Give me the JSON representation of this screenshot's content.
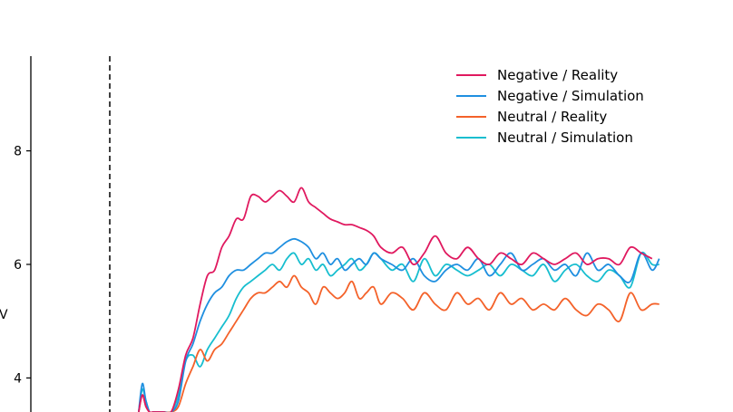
{
  "chart_data": {
    "type": "line",
    "ylabel": "V",
    "ylim": [
      3.4,
      9.7
    ],
    "xlim": [
      -0.22,
      1.55
    ],
    "y_ticks": [
      4,
      6,
      8
    ],
    "stimulus_onset_x": 0.0,
    "grid": false,
    "legend_position": "top-right",
    "series": [
      {
        "name": "Negative / Reality",
        "color": "#e0195f",
        "x": [
          0.08,
          0.09,
          0.1,
          0.11,
          0.12,
          0.13,
          0.15,
          0.17,
          0.19,
          0.21,
          0.23,
          0.25,
          0.27,
          0.29,
          0.31,
          0.33,
          0.35,
          0.37,
          0.39,
          0.41,
          0.43,
          0.45,
          0.47,
          0.49,
          0.51,
          0.53,
          0.55,
          0.57,
          0.59,
          0.61,
          0.63,
          0.65,
          0.67,
          0.69,
          0.71,
          0.73,
          0.75,
          0.78,
          0.81,
          0.84,
          0.87,
          0.9,
          0.93,
          0.96,
          0.99,
          1.02,
          1.05,
          1.08,
          1.11,
          1.14,
          1.17,
          1.2,
          1.23,
          1.26,
          1.29,
          1.32,
          1.35,
          1.38,
          1.41,
          1.44,
          1.47,
          1.5
        ],
        "values": [
          3.4,
          3.7,
          3.5,
          3.4,
          3.4,
          3.4,
          3.4,
          3.4,
          3.8,
          4.4,
          4.7,
          5.3,
          5.8,
          5.9,
          6.3,
          6.5,
          6.8,
          6.8,
          7.2,
          7.2,
          7.1,
          7.2,
          7.3,
          7.2,
          7.1,
          7.35,
          7.1,
          7.0,
          6.9,
          6.8,
          6.75,
          6.7,
          6.7,
          6.65,
          6.6,
          6.5,
          6.3,
          6.2,
          6.3,
          6.0,
          6.2,
          6.5,
          6.2,
          6.1,
          6.3,
          6.1,
          6.0,
          6.2,
          6.1,
          6.0,
          6.2,
          6.1,
          6.0,
          6.1,
          6.2,
          6.0,
          6.1,
          6.1,
          6.0,
          6.3,
          6.2,
          6.1
        ]
      },
      {
        "name": "Negative / Simulation",
        "color": "#1f8fe0",
        "x": [
          0.08,
          0.09,
          0.1,
          0.11,
          0.12,
          0.13,
          0.15,
          0.17,
          0.19,
          0.21,
          0.23,
          0.25,
          0.27,
          0.29,
          0.31,
          0.33,
          0.35,
          0.37,
          0.39,
          0.41,
          0.43,
          0.45,
          0.47,
          0.49,
          0.51,
          0.53,
          0.55,
          0.57,
          0.59,
          0.61,
          0.63,
          0.65,
          0.67,
          0.69,
          0.71,
          0.73,
          0.75,
          0.78,
          0.81,
          0.84,
          0.87,
          0.9,
          0.93,
          0.96,
          0.99,
          1.02,
          1.05,
          1.08,
          1.11,
          1.14,
          1.17,
          1.2,
          1.23,
          1.26,
          1.29,
          1.32,
          1.35,
          1.38,
          1.41,
          1.44,
          1.47,
          1.5,
          1.52
        ],
        "values": [
          3.4,
          3.9,
          3.6,
          3.4,
          3.4,
          3.4,
          3.4,
          3.4,
          3.6,
          4.3,
          4.6,
          5.0,
          5.3,
          5.5,
          5.6,
          5.8,
          5.9,
          5.9,
          6.0,
          6.1,
          6.2,
          6.2,
          6.3,
          6.4,
          6.45,
          6.4,
          6.3,
          6.1,
          6.2,
          6.0,
          6.1,
          5.9,
          6.0,
          6.1,
          6.0,
          6.2,
          6.1,
          6.0,
          5.9,
          6.1,
          5.8,
          5.7,
          5.9,
          6.0,
          5.9,
          6.1,
          5.8,
          6.0,
          6.2,
          5.9,
          6.0,
          6.1,
          5.9,
          6.0,
          5.8,
          6.2,
          5.9,
          6.0,
          5.8,
          5.7,
          6.2,
          5.9,
          6.1
        ]
      },
      {
        "name": "Neutral / Reality",
        "color": "#f4622a",
        "x": [
          0.08,
          0.09,
          0.1,
          0.11,
          0.12,
          0.13,
          0.15,
          0.17,
          0.19,
          0.21,
          0.23,
          0.25,
          0.27,
          0.29,
          0.31,
          0.33,
          0.35,
          0.37,
          0.39,
          0.41,
          0.43,
          0.45,
          0.47,
          0.49,
          0.51,
          0.53,
          0.55,
          0.57,
          0.59,
          0.61,
          0.63,
          0.65,
          0.67,
          0.69,
          0.71,
          0.73,
          0.75,
          0.78,
          0.81,
          0.84,
          0.87,
          0.9,
          0.93,
          0.96,
          0.99,
          1.02,
          1.05,
          1.08,
          1.11,
          1.14,
          1.17,
          1.2,
          1.23,
          1.26,
          1.29,
          1.32,
          1.35,
          1.38,
          1.41,
          1.44,
          1.47,
          1.5,
          1.52
        ],
        "values": [
          3.4,
          3.7,
          3.5,
          3.4,
          3.4,
          3.4,
          3.4,
          3.4,
          3.5,
          3.9,
          4.2,
          4.5,
          4.3,
          4.5,
          4.6,
          4.8,
          5.0,
          5.2,
          5.4,
          5.5,
          5.5,
          5.6,
          5.7,
          5.6,
          5.8,
          5.6,
          5.5,
          5.3,
          5.6,
          5.5,
          5.4,
          5.5,
          5.7,
          5.4,
          5.5,
          5.6,
          5.3,
          5.5,
          5.4,
          5.2,
          5.5,
          5.3,
          5.2,
          5.5,
          5.3,
          5.4,
          5.2,
          5.5,
          5.3,
          5.4,
          5.2,
          5.3,
          5.2,
          5.4,
          5.2,
          5.1,
          5.3,
          5.2,
          5.0,
          5.5,
          5.2,
          5.3,
          5.3
        ]
      },
      {
        "name": "Neutral / Simulation",
        "color": "#17becf",
        "x": [
          0.08,
          0.09,
          0.1,
          0.11,
          0.12,
          0.13,
          0.15,
          0.17,
          0.19,
          0.21,
          0.23,
          0.25,
          0.27,
          0.29,
          0.31,
          0.33,
          0.35,
          0.37,
          0.39,
          0.41,
          0.43,
          0.45,
          0.47,
          0.49,
          0.51,
          0.53,
          0.55,
          0.57,
          0.59,
          0.61,
          0.63,
          0.65,
          0.67,
          0.69,
          0.71,
          0.73,
          0.75,
          0.78,
          0.81,
          0.84,
          0.87,
          0.9,
          0.93,
          0.96,
          0.99,
          1.02,
          1.05,
          1.08,
          1.11,
          1.14,
          1.17,
          1.2,
          1.23,
          1.26,
          1.29,
          1.32,
          1.35,
          1.38,
          1.41,
          1.44,
          1.47,
          1.5,
          1.52
        ],
        "values": [
          3.4,
          3.8,
          3.6,
          3.4,
          3.4,
          3.4,
          3.4,
          3.4,
          3.7,
          4.3,
          4.4,
          4.2,
          4.5,
          4.7,
          4.9,
          5.1,
          5.4,
          5.6,
          5.7,
          5.8,
          5.9,
          6.0,
          5.9,
          6.1,
          6.2,
          6.0,
          6.1,
          5.9,
          6.0,
          5.8,
          5.9,
          6.0,
          6.1,
          5.9,
          6.0,
          6.2,
          6.1,
          5.9,
          6.0,
          5.7,
          6.1,
          5.8,
          6.0,
          5.9,
          5.8,
          5.9,
          6.0,
          5.8,
          6.0,
          5.9,
          5.8,
          6.0,
          5.7,
          5.9,
          6.0,
          5.8,
          5.7,
          5.9,
          5.8,
          5.6,
          6.2,
          6.0,
          6.0
        ]
      }
    ]
  }
}
